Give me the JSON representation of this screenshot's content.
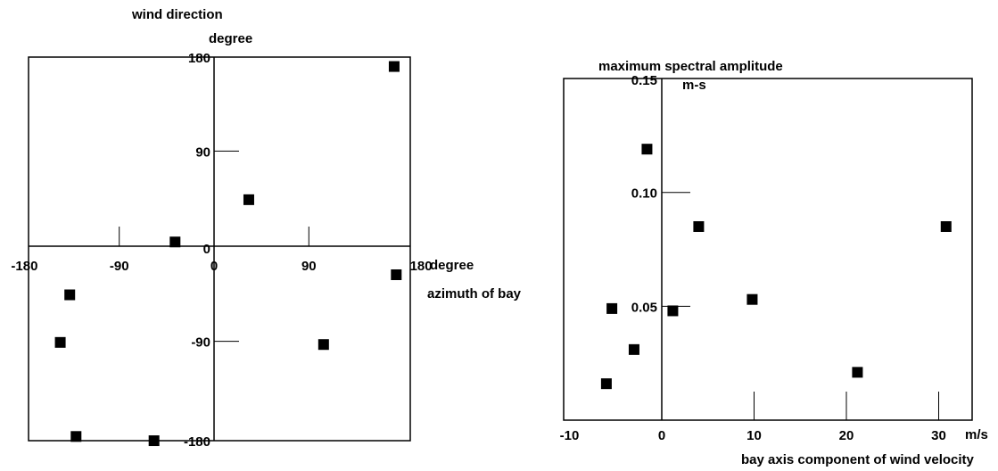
{
  "chart_data": [
    {
      "type": "scatter",
      "ylabel": "wind direction",
      "yunit": "degree",
      "xlabel": "azimuth of bay",
      "xunit": "degree",
      "xlim": [
        -200,
        200
      ],
      "ylim": [
        -200,
        200
      ],
      "x_ticks": [
        -180,
        -90,
        0,
        90,
        180
      ],
      "y_ticks": [
        180,
        90,
        0,
        -90,
        -180
      ],
      "grid": false,
      "series": [
        {
          "points": [
            {
              "x": 171,
              "y": 170
            },
            {
              "x": 33,
              "y": 44
            },
            {
              "x": -37,
              "y": 4
            },
            {
              "x": 173,
              "y": -27
            },
            {
              "x": -137,
              "y": -46
            },
            {
              "x": -146,
              "y": -91
            },
            {
              "x": 104,
              "y": -93
            },
            {
              "x": -131,
              "y": -180
            },
            {
              "x": -57,
              "y": -184
            }
          ]
        }
      ]
    },
    {
      "type": "scatter",
      "ylabel": "maximum spectral amplitude",
      "yunit": "m-s",
      "xlabel": "bay axis component of wind velocity",
      "xunit": "m/s",
      "xlim": [
        -10,
        35
      ],
      "ylim": [
        0,
        0.15
      ],
      "x_ticks": [
        -10,
        0,
        10,
        20,
        30
      ],
      "y_ticks": [
        "0.15",
        "0.10",
        "0.05"
      ],
      "grid": false,
      "series": [
        {
          "points": [
            {
              "x": -1.6,
              "y": 0.119
            },
            {
              "x": 4.0,
              "y": 0.085
            },
            {
              "x": 30.8,
              "y": 0.085
            },
            {
              "x": 9.8,
              "y": 0.053
            },
            {
              "x": -5.4,
              "y": 0.049
            },
            {
              "x": 1.2,
              "y": 0.048
            },
            {
              "x": -3.0,
              "y": 0.031
            },
            {
              "x": 21.2,
              "y": 0.021
            },
            {
              "x": -6.0,
              "y": 0.016
            }
          ]
        }
      ]
    }
  ]
}
